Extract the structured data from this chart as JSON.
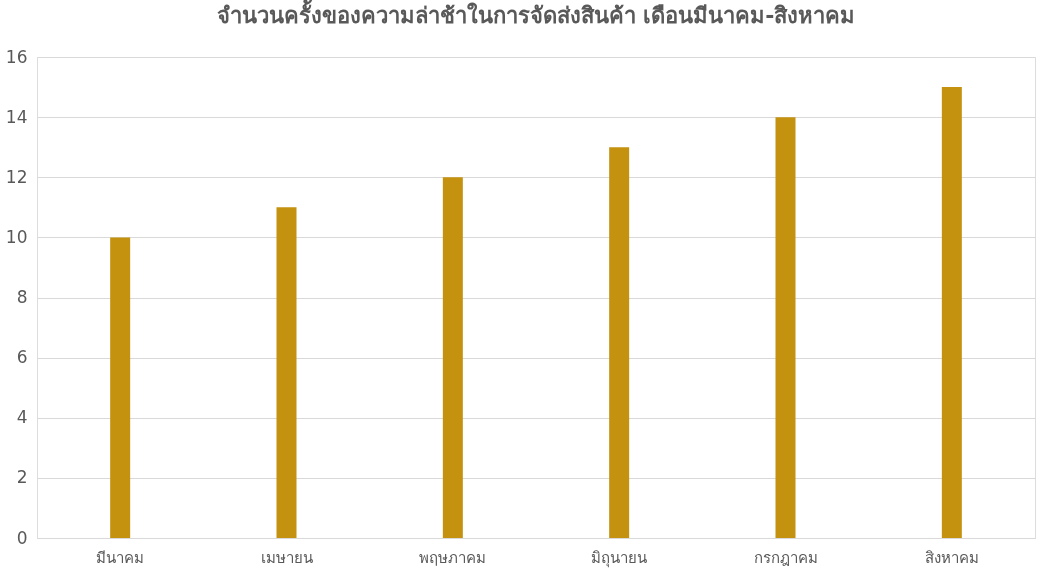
{
  "chart_data": {
    "type": "bar",
    "title": "จำนวนครั้งของความล่าช้าในการจัดส่งสินค้า เดือนมีนาคม-สิงหาคม",
    "categories": [
      "มีนาคม",
      "เมษายน",
      "พฤษภาคม",
      "มิถุนายน",
      "กรกฎาคม",
      "สิงหาคม"
    ],
    "values": [
      10,
      11,
      12,
      13,
      14,
      15
    ],
    "color": "#c4920f",
    "ylim": [
      0,
      16
    ],
    "yticks": [
      0,
      2,
      4,
      6,
      8,
      10,
      12,
      14,
      16
    ],
    "grid": "y"
  }
}
